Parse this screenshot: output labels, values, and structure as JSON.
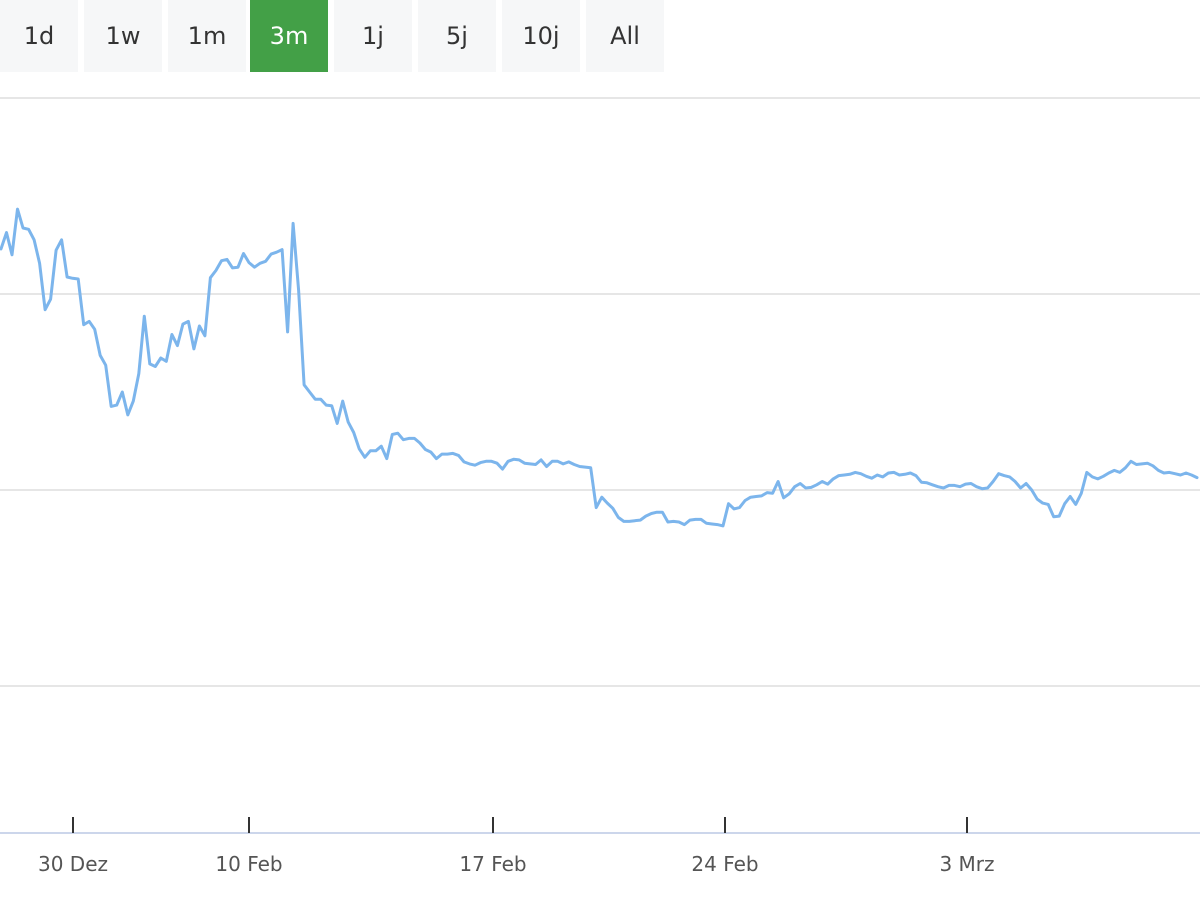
{
  "range_buttons": [
    "1d",
    "1w",
    "1m",
    "3m",
    "1j",
    "5j",
    "10j",
    "All"
  ],
  "active_range": "3m",
  "colors": {
    "line": "#7cb5ec",
    "active_button": "#43a047",
    "button_bg": "#f6f7f8",
    "grid": "#e6e6e6",
    "axis": "#ccd6eb"
  },
  "chart_data": {
    "type": "line",
    "title": "",
    "xlabel": "",
    "ylabel": "",
    "x_tick_labels": [
      "30 Dez",
      "10 Feb",
      "17 Feb",
      "24 Feb",
      "3 Mrz"
    ],
    "y_tick_labels": [],
    "grid": true,
    "legend": "none",
    "series": [
      {
        "values": [
          76.9,
          79.4,
          76.0,
          83.0,
          80.1,
          79.9,
          78.3,
          74.7,
          67.6,
          69.2,
          76.7,
          78.3,
          72.6,
          72.4,
          72.3,
          65.3,
          65.8,
          64.6,
          60.6,
          59.1,
          52.8,
          53.0,
          55.0,
          51.5,
          53.6,
          57.8,
          66.6,
          59.3,
          58.9,
          60.2,
          59.7,
          63.8,
          62.1,
          65.4,
          65.8,
          61.6,
          65.1,
          63.6,
          72.5,
          73.6,
          75.1,
          75.3,
          74.0,
          74.1,
          76.2,
          74.8,
          74.1,
          74.7,
          75.0,
          76.1,
          76.4,
          76.8,
          64.2,
          80.8,
          70.6,
          56.1,
          55.0,
          53.9,
          53.9,
          53.0,
          52.9,
          50.2,
          53.6,
          50.4,
          48.8,
          46.3,
          45.0,
          46.0,
          46.0,
          46.7,
          44.8,
          48.5,
          48.7,
          47.7,
          47.9,
          47.9,
          47.2,
          46.2,
          45.8,
          44.8,
          45.5,
          45.5,
          45.6,
          45.3,
          44.3,
          44.0,
          43.8,
          44.2,
          44.4,
          44.4,
          44.1,
          43.2,
          44.4,
          44.7,
          44.6,
          44.1,
          44.0,
          43.9,
          44.6,
          43.6,
          44.4,
          44.4,
          44.0,
          44.3,
          43.9,
          43.6,
          43.5,
          43.4,
          37.3,
          38.9,
          38.0,
          37.2,
          35.8,
          35.2,
          35.2,
          35.3,
          35.4,
          36.0,
          36.4,
          36.6,
          36.6,
          35.1,
          35.2,
          35.1,
          34.7,
          35.4,
          35.5,
          35.5,
          34.9,
          34.8,
          34.7,
          34.5,
          37.9,
          37.1,
          37.3,
          38.4,
          38.9,
          39.0,
          39.1,
          39.6,
          39.5,
          41.3,
          38.8,
          39.4,
          40.5,
          41.0,
          40.3,
          40.4,
          40.8,
          41.3,
          40.9,
          41.7,
          42.2,
          42.3,
          42.4,
          42.7,
          42.5,
          42.1,
          41.8,
          42.3,
          42.0,
          42.6,
          42.7,
          42.3,
          42.4,
          42.6,
          42.2,
          41.2,
          41.1,
          40.8,
          40.5,
          40.3,
          40.7,
          40.7,
          40.5,
          40.9,
          41.0,
          40.5,
          40.2,
          40.3,
          41.3,
          42.5,
          42.2,
          42.0,
          41.3,
          40.3,
          41.0,
          40.0,
          38.6,
          38.0,
          37.8,
          35.9,
          36.0,
          37.9,
          39.0,
          37.8,
          39.5,
          42.7,
          42.0,
          41.7,
          42.1,
          42.6,
          43.0,
          42.7,
          43.4,
          44.4,
          43.9,
          44.0,
          44.1,
          43.7,
          43.0,
          42.6,
          42.7,
          42.5,
          42.3,
          42.6,
          42.3,
          41.9
        ]
      }
    ]
  }
}
